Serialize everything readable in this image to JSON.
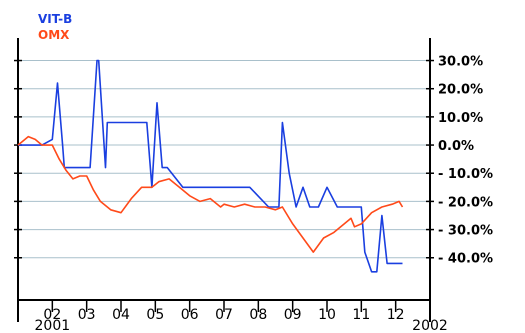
{
  "chart_data": {
    "type": "line",
    "title": "",
    "xlabel": "",
    "ylabel": "",
    "legend": [
      "VIT-B",
      "OMX"
    ],
    "legend_placement": "top-left",
    "grid": true,
    "ylim": [
      -55,
      38
    ],
    "yticks": [
      30,
      20,
      10,
      0,
      -10,
      -20,
      -30,
      -40
    ],
    "ytick_labels": [
      "30.0%",
      "20.0%",
      "10.0%",
      "0.0%",
      "- 10.0%",
      "- 20.0%",
      "- 30.0%",
      "- 40.0%"
    ],
    "xlim": [
      1,
      13
    ],
    "xticks": [
      {
        "value": 2,
        "label": "02"
      },
      {
        "value": 3,
        "label": "03"
      },
      {
        "value": 4,
        "label": "04"
      },
      {
        "value": 5,
        "label": "05"
      },
      {
        "value": 6,
        "label": "06"
      },
      {
        "value": 7,
        "label": "07"
      },
      {
        "value": 8,
        "label": "08"
      },
      {
        "value": 9,
        "label": "09"
      },
      {
        "value": 10,
        "label": "10"
      },
      {
        "value": 11,
        "label": "11"
      },
      {
        "value": 12,
        "label": "12"
      }
    ],
    "year_labels": [
      {
        "value": 2,
        "label": "2001"
      },
      {
        "value": 13,
        "label": "2002"
      }
    ],
    "series": [
      {
        "name": "VIT-B",
        "color": "#1a3fe0",
        "x": [
          1.0,
          1.7,
          2.0,
          2.15,
          2.3,
          2.35,
          2.5,
          3.1,
          3.3,
          3.35,
          3.55,
          3.6,
          3.75,
          4.75,
          4.9,
          5.05,
          5.2,
          5.35,
          5.8,
          6.15,
          7.75,
          8.3,
          8.6,
          8.7,
          8.9,
          9.1,
          9.3,
          9.5,
          9.75,
          10.0,
          10.3,
          10.75,
          11.0,
          11.1,
          11.3,
          11.45,
          11.6,
          11.75,
          12.2
        ],
        "y": [
          0,
          0,
          2,
          22,
          0,
          -8,
          -8,
          -8,
          30,
          30,
          -8,
          8,
          8,
          8,
          -15,
          15,
          -8,
          -8,
          -15,
          -15,
          -15,
          -22,
          -22,
          8,
          -10,
          -22,
          -15,
          -22,
          -22,
          -15,
          -22,
          -22,
          -22,
          -38,
          -45,
          -45,
          -25,
          -42,
          -42
        ]
      },
      {
        "name": "OMX",
        "color": "#ff4a1a",
        "x": [
          1.0,
          1.3,
          1.5,
          1.7,
          2.0,
          2.2,
          2.4,
          2.6,
          2.8,
          3.0,
          3.2,
          3.4,
          3.7,
          4.0,
          4.3,
          4.6,
          4.9,
          5.1,
          5.4,
          5.7,
          6.0,
          6.3,
          6.6,
          6.9,
          7.0,
          7.3,
          7.6,
          7.9,
          8.2,
          8.5,
          8.7,
          9.0,
          9.3,
          9.6,
          9.9,
          10.2,
          10.5,
          10.7,
          10.8,
          11.0,
          11.3,
          11.6,
          11.9,
          12.1,
          12.2
        ],
        "y": [
          0,
          3,
          2,
          0,
          0,
          -5,
          -9,
          -12,
          -11,
          -11,
          -16,
          -20,
          -23,
          -24,
          -19,
          -15,
          -15,
          -13,
          -12,
          -15,
          -18,
          -20,
          -19,
          -22,
          -21,
          -22,
          -21,
          -22,
          -22,
          -23,
          -22,
          -28,
          -33,
          -38,
          -33,
          -31,
          -28,
          -26,
          -29,
          -28,
          -24,
          -22,
          -21,
          -20,
          -22
        ]
      }
    ]
  }
}
